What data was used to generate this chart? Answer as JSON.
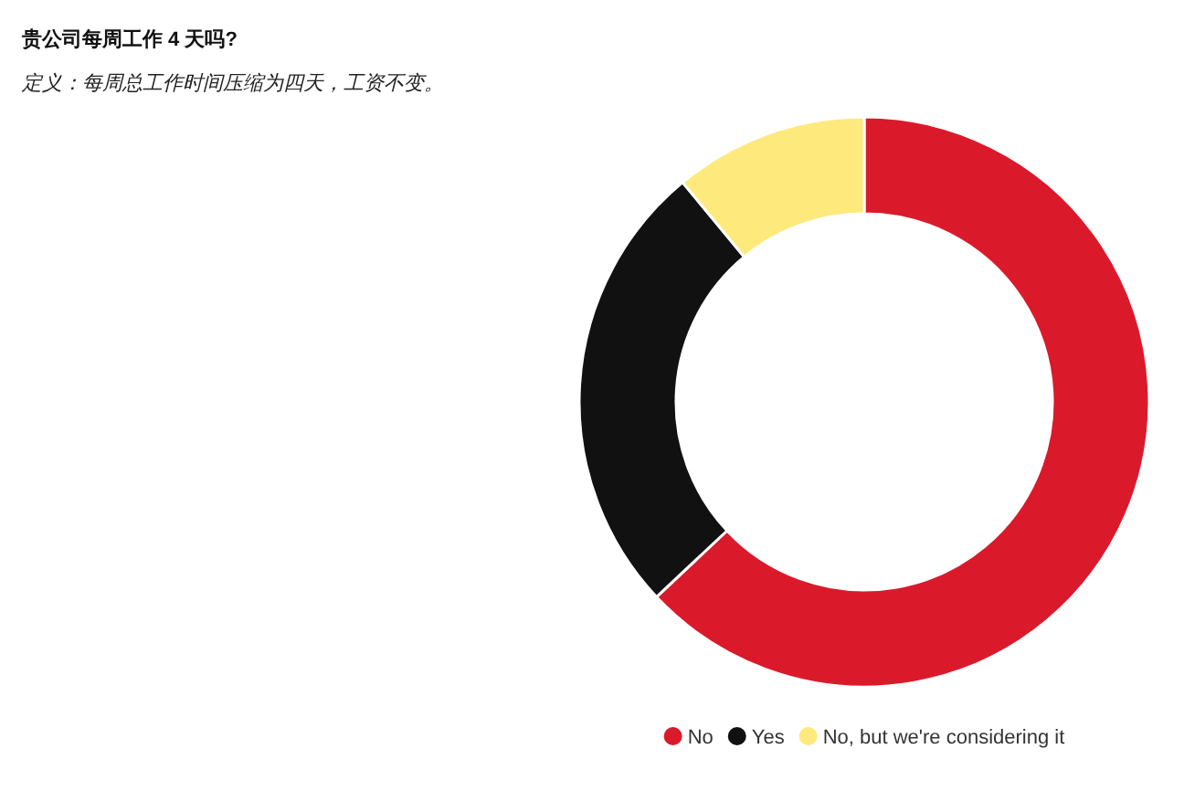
{
  "chart_data": {
    "type": "donut",
    "title": "贵公司每周工作 4 天吗?",
    "subtitle": "定义：每周总工作时间压缩为四天，工资不变。",
    "categories": [
      "No",
      "Yes",
      "No, but we're considering it"
    ],
    "values": [
      63,
      26,
      11
    ],
    "colors": [
      "#da1a2b",
      "#111111",
      "#fee97c"
    ],
    "legend": "bottom"
  }
}
